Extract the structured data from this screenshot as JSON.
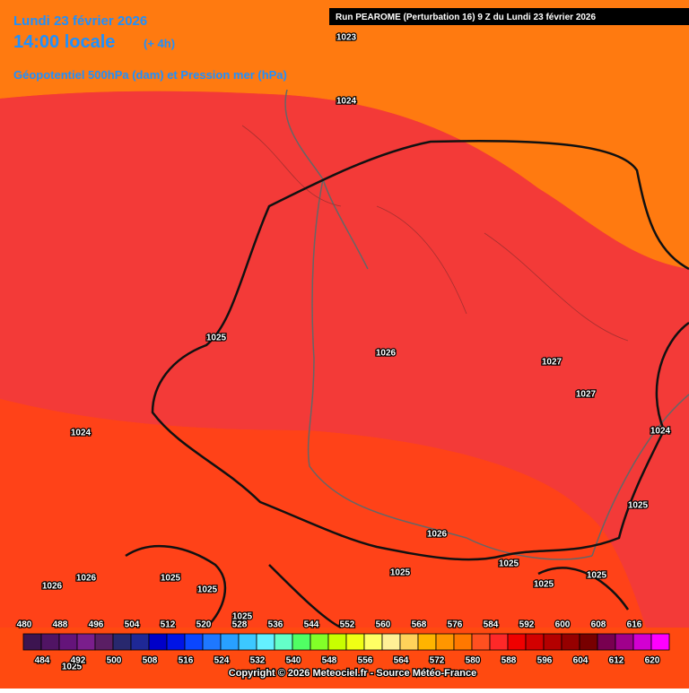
{
  "header": {
    "date": "Lundi 23 février 2026",
    "time": "14:00 locale",
    "offset": "(+ 4h)",
    "field": "Géopotentiel 500hPa (dam) et Pression mer (hPa)",
    "run": "Run PEAROME (Perturbation 16) 9 Z du Lundi 23 février 2026"
  },
  "isobar_labels": [
    1023,
    1024,
    1025,
    1026,
    1027,
    1027,
    1024,
    1024,
    1025,
    1026,
    1025,
    1025,
    1025,
    1025,
    1026,
    1026,
    1025,
    1025,
    1025,
    1025
  ],
  "colorbar": {
    "values": [
      480,
      484,
      488,
      492,
      496,
      500,
      504,
      508,
      512,
      516,
      520,
      524,
      528,
      532,
      536,
      540,
      544,
      548,
      552,
      556,
      560,
      564,
      568,
      572,
      576,
      580,
      584,
      588,
      592,
      596,
      600,
      604,
      608,
      612,
      616,
      620
    ],
    "colors": [
      "#3c1450",
      "#501464",
      "#64147a",
      "#7a1e8c",
      "#5a1e64",
      "#28286e",
      "#1e2896",
      "#0000c8",
      "#0014e6",
      "#0a46ff",
      "#1e78ff",
      "#28a0ff",
      "#3cc8ff",
      "#64f0ff",
      "#64ffc8",
      "#50ff64",
      "#82ff28",
      "#c8ff00",
      "#f0ff14",
      "#ffff64",
      "#fff096",
      "#ffd25a",
      "#ffb400",
      "#ff9600",
      "#ff7800",
      "#ff5020",
      "#ff2828",
      "#f00000",
      "#d20000",
      "#b40000",
      "#960000",
      "#780000",
      "#780050",
      "#a0008c",
      "#d200d2",
      "#ff00ff"
    ]
  },
  "footer": {
    "copyright": "Copyright © 2026 Meteociel.fr - Source Météo-France"
  }
}
